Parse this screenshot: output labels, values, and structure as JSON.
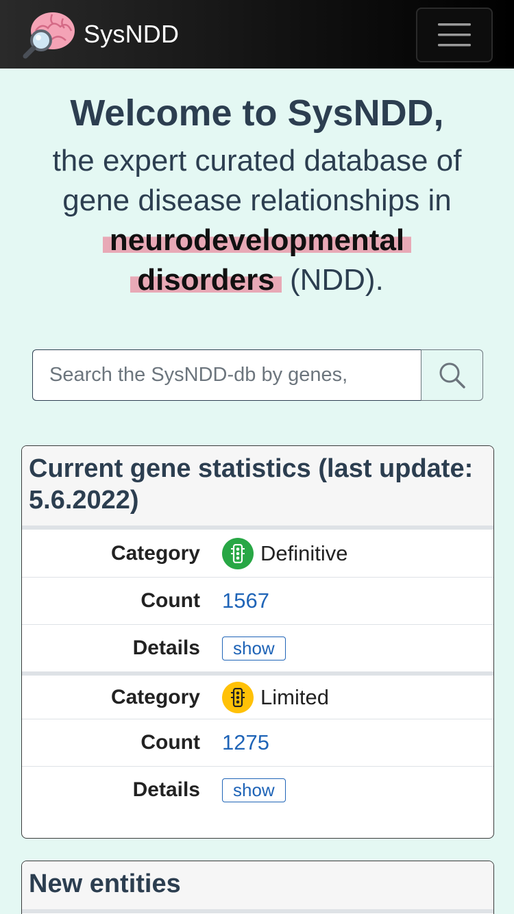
{
  "navbar": {
    "brand_name": "SysNDD",
    "logo_icon": "brain-magnifier-icon",
    "menu_icon": "hamburger-menu-icon"
  },
  "hero": {
    "title": "Welcome to SysNDD,",
    "subtitle_part1": "the expert curated database of gene disease relationships in",
    "highlight_word1": "neurodevelopmental",
    "highlight_word2": "disorders",
    "subtitle_part2": "(NDD)."
  },
  "search": {
    "placeholder": "Search the SysNDD-db by genes,",
    "value": "",
    "button_icon": "search-icon"
  },
  "gene_stats": {
    "header": "Current gene statistics (last update: 5.6.2022)",
    "labels": {
      "category": "Category",
      "count": "Count",
      "details": "Details"
    },
    "rows": [
      {
        "category": "Definitive",
        "count": "1567",
        "details_button": "show",
        "badge_color": "#28a745",
        "badge_icon": "traffic-light-icon"
      },
      {
        "category": "Limited",
        "count": "1275",
        "details_button": "show",
        "badge_color": "#ffc107",
        "badge_icon": "traffic-light-icon"
      }
    ]
  },
  "new_entities": {
    "header": "New entities"
  },
  "colors": {
    "page_background": "#e4f8f3",
    "text_primary": "#2c3e50",
    "highlight": "#e8a9b6",
    "link": "#1f64b7"
  }
}
